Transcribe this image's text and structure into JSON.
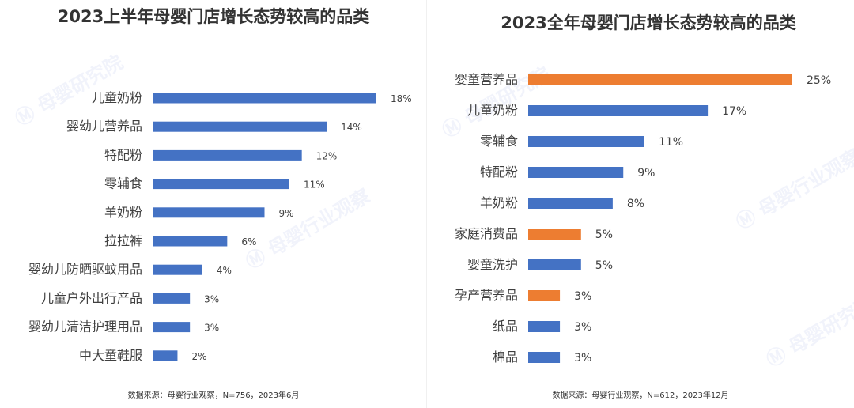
{
  "charts": [
    {
      "title": "2023上半年母婴门店增长态势较高的品类",
      "source": "数据来源：母婴行业观察，N=756，2023年6月",
      "chart_data": {
        "type": "bar",
        "orientation": "horizontal",
        "title": "2023上半年母婴门店增长态势较高的品类",
        "categories": [
          "儿童奶粉",
          "婴幼儿营养品",
          "特配粉",
          "零辅食",
          "羊奶粉",
          "拉拉裤",
          "婴幼儿防晒驱蚊用品",
          "儿童户外出行产品",
          "婴幼儿清洁护理用品",
          "中大童鞋服"
        ],
        "values": [
          18,
          14,
          12,
          11,
          9,
          6,
          4,
          3,
          3,
          2
        ],
        "value_labels": [
          "18%",
          "14%",
          "12%",
          "11%",
          "9%",
          "6%",
          "4%",
          "3%",
          "3%",
          "2%"
        ],
        "colors": [
          "#4472c4",
          "#4472c4",
          "#4472c4",
          "#4472c4",
          "#4472c4",
          "#4472c4",
          "#4472c4",
          "#4472c4",
          "#4472c4",
          "#4472c4"
        ],
        "xlim": [
          0,
          18
        ],
        "grid": false,
        "legend": "none"
      }
    },
    {
      "title": "2023全年母婴门店增长态势较高的品类",
      "source": "数据来源：母婴行业观察，N=612，2023年12月",
      "chart_data": {
        "type": "bar",
        "orientation": "horizontal",
        "title": "2023全年母婴门店增长态势较高的品类",
        "categories": [
          "婴童营养品",
          "儿童奶粉",
          "零辅食",
          "特配粉",
          "羊奶粉",
          "家庭消费品",
          "婴童洗护",
          "孕产营养品",
          "纸品",
          "棉品"
        ],
        "values": [
          25,
          17,
          11,
          9,
          8,
          5,
          5,
          3,
          3,
          3
        ],
        "value_labels": [
          "25%",
          "17%",
          "11%",
          "9%",
          "8%",
          "5%",
          "5%",
          "3%",
          "3%",
          "3%"
        ],
        "colors": [
          "#ed7d31",
          "#4472c4",
          "#4472c4",
          "#4472c4",
          "#4472c4",
          "#ed7d31",
          "#4472c4",
          "#ed7d31",
          "#4472c4",
          "#4472c4"
        ],
        "xlim": [
          0,
          25
        ],
        "grid": false,
        "legend": "none"
      }
    }
  ],
  "colors": {
    "blue": "#4472c4",
    "orange": "#ed7d31",
    "text": "#404040"
  },
  "watermark_text": "母婴研究院"
}
